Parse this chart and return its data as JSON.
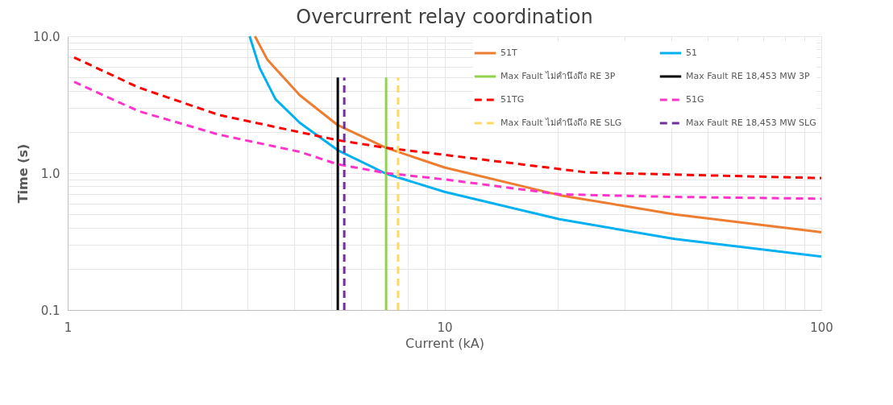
{
  "chart_data": {
    "type": "line",
    "title": "Overcurrent relay coordination",
    "xlabel": "Current (kA)",
    "ylabel": "Time (s)",
    "log": "xy",
    "xlim": [
      1,
      100
    ],
    "ylim": [
      0.1,
      10
    ],
    "xticks": [
      1,
      {
        "value": 2,
        "label": null
      },
      {
        "value": 3,
        "label": null
      },
      {
        "value": 4,
        "label": null
      },
      {
        "value": 5,
        "label": null
      },
      {
        "value": 6,
        "label": null
      },
      {
        "value": 7,
        "label": null
      },
      {
        "value": 8,
        "label": null
      },
      {
        "value": 9,
        "label": null
      },
      10,
      {
        "value": 20,
        "label": null
      },
      {
        "value": 30,
        "label": null
      },
      {
        "value": 40,
        "label": null
      },
      {
        "value": 50,
        "label": null
      },
      {
        "value": 60,
        "label": null
      },
      {
        "value": 70,
        "label": null
      },
      {
        "value": 80,
        "label": null
      },
      {
        "value": 90,
        "label": null
      },
      100
    ],
    "yticks": [
      {
        "value": 0.1,
        "label": "0.1"
      },
      {
        "value": 0.2,
        "label": null
      },
      {
        "value": 0.3,
        "label": null
      },
      {
        "value": 0.4,
        "label": null
      },
      {
        "value": 0.5,
        "label": null
      },
      {
        "value": 0.6,
        "label": null
      },
      {
        "value": 0.7,
        "label": null
      },
      {
        "value": 0.8,
        "label": null
      },
      {
        "value": 0.9,
        "label": null
      },
      {
        "value": 1,
        "label": "1.0"
      },
      {
        "value": 2,
        "label": null
      },
      {
        "value": 3,
        "label": null
      },
      {
        "value": 4,
        "label": null
      },
      {
        "value": 5,
        "label": null
      },
      {
        "value": 6,
        "label": null
      },
      {
        "value": 7,
        "label": null
      },
      {
        "value": 8,
        "label": null
      },
      {
        "value": 9,
        "label": null
      },
      {
        "value": 10,
        "label": "10.0"
      }
    ],
    "grid": true,
    "legend": "top right",
    "marker": "none",
    "series": [
      {
        "name": "51T",
        "color": "#ed7d31",
        "line_style": "solid",
        "x": [
          3.14,
          3.39,
          4.13,
          5.21,
          7.0,
          10,
          20.2,
          40.8,
          100
        ],
        "values": [
          10,
          6.72,
          3.71,
          2.24,
          1.53,
          1.1,
          0.69,
          0.5,
          0.37
        ]
      },
      {
        "name": "51",
        "color": "#00b0f0",
        "line_style": "solid",
        "x": [
          3.04,
          3.23,
          3.56,
          4.13,
          5.21,
          7.0,
          10,
          20.2,
          40.8,
          100
        ],
        "values": [
          10,
          5.89,
          3.47,
          2.33,
          1.47,
          0.99,
          0.73,
          0.46,
          0.33,
          0.246
        ]
      },
      {
        "name": "Max Fault ไม่คำนึงถึง RE 3P",
        "color": "#92d050",
        "line_style": "solid",
        "x": [
          7.0,
          7.0
        ],
        "values": [
          0.1,
          5
        ]
      },
      {
        "name": "Max Fault RE 18,453 MW 3P",
        "color": "#000000",
        "line_style": "solid",
        "x": [
          5.21,
          5.21
        ],
        "values": [
          0.1,
          5
        ]
      },
      {
        "name": "51TG",
        "color": "#ff0000",
        "line_style": "dashed",
        "x": [
          1.04,
          1.54,
          2.52,
          4.13,
          5.21,
          7.0,
          10,
          24.0,
          100
        ],
        "values": [
          7.0,
          4.23,
          2.66,
          1.99,
          1.74,
          1.53,
          1.36,
          1.01,
          0.92
        ]
      },
      {
        "name": "51G",
        "color": "#ff33cc",
        "line_style": "dashed",
        "x": [
          1.04,
          1.54,
          2.52,
          4.13,
          5.21,
          7.0,
          10,
          20.2,
          40.8,
          100
        ],
        "values": [
          4.64,
          2.84,
          1.91,
          1.43,
          1.16,
          1.0,
          0.9,
          0.7,
          0.67,
          0.65
        ]
      },
      {
        "name": "Max Fault ไม่คำนึงถึง RE SLG",
        "color": "#ffd966",
        "line_style": "dashed",
        "x": [
          7.53,
          7.53
        ],
        "values": [
          0.1,
          5
        ]
      },
      {
        "name": "Max Fault RE 18,453 MW SLG",
        "color": "#7030a0",
        "line_style": "dashed",
        "x": [
          5.42,
          5.42
        ],
        "values": [
          0.1,
          5
        ]
      }
    ]
  }
}
